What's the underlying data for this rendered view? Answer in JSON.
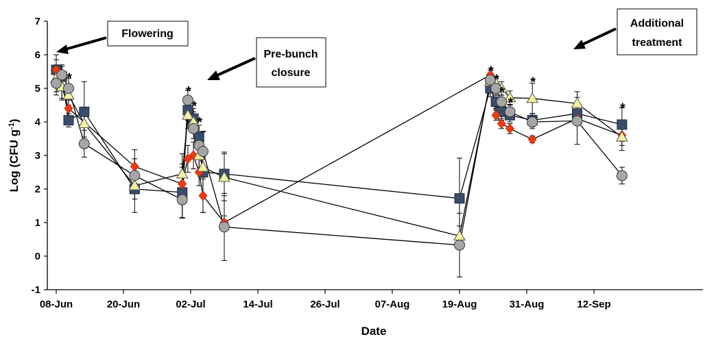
{
  "chart_data": {
    "type": "scatter",
    "title": "",
    "xlabel": "Date",
    "ylabel": "Log (CFU g",
    "ylabel_sup": "-1",
    "ylabel_close": ")",
    "ylim": [
      -1,
      7
    ],
    "yticks": [
      -1,
      0,
      1,
      2,
      3,
      4,
      5,
      6,
      7
    ],
    "xticks": [
      {
        "day": 0,
        "label": "08-Jun"
      },
      {
        "day": 12,
        "label": "20-Jun"
      },
      {
        "day": 24,
        "label": "02-Jul"
      },
      {
        "day": 36,
        "label": "14-Jul"
      },
      {
        "day": 48,
        "label": "26-Jul"
      },
      {
        "day": 60,
        "label": "07-Aug"
      },
      {
        "day": 72,
        "label": "19-Aug"
      },
      {
        "day": 84,
        "label": "31-Aug"
      },
      {
        "day": 96,
        "label": "12-Sep"
      }
    ],
    "xlim": [
      0,
      103
    ],
    "grid": false,
    "series": [
      {
        "marker": "square",
        "color": "#3a4d6b",
        "points": [
          {
            "x": 0,
            "y": 5.55,
            "err": 0.45
          },
          {
            "x": 1,
            "y": 5.35,
            "err": 0.3
          },
          {
            "x": 2.2,
            "y": 4.05,
            "err": 0.2
          },
          {
            "x": 5,
            "y": 4.3,
            "err": 0.9
          },
          {
            "x": 14,
            "y": 2.0,
            "err": 0.7
          },
          {
            "x": 22.5,
            "y": 1.9,
            "err": 0.75
          },
          {
            "x": 23.5,
            "y": 4.35,
            "err": 0.3
          },
          {
            "x": 24.5,
            "y": 4.1,
            "err": 0.3
          },
          {
            "x": 25.5,
            "y": 3.55,
            "err": 0.35
          },
          {
            "x": 26.2,
            "y": 2.5,
            "err": 1.2
          },
          {
            "x": 30,
            "y": 2.45,
            "err": 0.65
          },
          {
            "x": 72,
            "y": 1.72,
            "err": 1.2
          },
          {
            "x": 77.5,
            "y": 5.0,
            "err": 0.25
          },
          {
            "x": 78.5,
            "y": 4.6,
            "err": 0.2
          },
          {
            "x": 79.5,
            "y": 4.3,
            "err": 0.25
          },
          {
            "x": 81,
            "y": 4.2,
            "err": 0.2
          },
          {
            "x": 85,
            "y": 4.05,
            "err": 0.2
          },
          {
            "x": 93,
            "y": 4.25,
            "err": 0.3
          },
          {
            "x": 101,
            "y": 3.92,
            "err": 0.5
          }
        ]
      },
      {
        "marker": "diamond",
        "color": "#f03a12",
        "points": [
          {
            "x": 0,
            "y": 5.55,
            "err": 0.3
          },
          {
            "x": 1,
            "y": 5.05,
            "err": 0.35
          },
          {
            "x": 2.2,
            "y": 4.4,
            "err": 0.25
          },
          {
            "x": 14,
            "y": 2.67,
            "err": 0.5
          },
          {
            "x": 22.5,
            "y": 2.15,
            "err": 0.6
          },
          {
            "x": 23.5,
            "y": 2.9,
            "err": 0.4
          },
          {
            "x": 24.5,
            "y": 3.0,
            "err": 0.4
          },
          {
            "x": 25.5,
            "y": 2.5,
            "err": 0.4
          },
          {
            "x": 26.2,
            "y": 1.8,
            "err": 0.5
          },
          {
            "x": 30,
            "y": 1.0,
            "err": 0.2
          },
          {
            "x": 77.5,
            "y": 5.4,
            "err": 0.15
          },
          {
            "x": 78.5,
            "y": 4.2,
            "err": 0.15
          },
          {
            "x": 79.5,
            "y": 3.95,
            "err": 0.15
          },
          {
            "x": 81,
            "y": 3.8,
            "err": 0.15
          },
          {
            "x": 85,
            "y": 3.48,
            "err": 0.1
          },
          {
            "x": 93,
            "y": 4.1,
            "err": 0.2
          },
          {
            "x": 101,
            "y": 3.6,
            "err": 0.3
          }
        ]
      },
      {
        "marker": "triangle",
        "color": "#f6f1a0",
        "points": [
          {
            "x": 0,
            "y": 5.3,
            "err": 0.4
          },
          {
            "x": 1,
            "y": 5.05,
            "err": 0.4
          },
          {
            "x": 2.2,
            "y": 4.8,
            "err": 0.3
          },
          {
            "x": 5,
            "y": 3.95,
            "err": 0.4
          },
          {
            "x": 14,
            "y": 2.1,
            "err": 0.4
          },
          {
            "x": 22.5,
            "y": 2.45,
            "err": 0.6
          },
          {
            "x": 23.5,
            "y": 4.2,
            "err": 0.4
          },
          {
            "x": 24.5,
            "y": 4.0,
            "err": 0.3
          },
          {
            "x": 25.5,
            "y": 3.0,
            "err": 0.5
          },
          {
            "x": 26.2,
            "y": 2.65,
            "err": 0.3
          },
          {
            "x": 30,
            "y": 2.35,
            "err": 0.7
          },
          {
            "x": 72,
            "y": 0.6,
            "err": 0.3
          },
          {
            "x": 77.5,
            "y": 5.2,
            "err": 0.2
          },
          {
            "x": 78.5,
            "y": 5.15,
            "err": 0.2
          },
          {
            "x": 79.5,
            "y": 5.0,
            "err": 0.2
          },
          {
            "x": 81,
            "y": 4.72,
            "err": 0.2
          },
          {
            "x": 85,
            "y": 4.7,
            "err": 0.45
          },
          {
            "x": 93,
            "y": 4.55,
            "err": 0.35
          },
          {
            "x": 101,
            "y": 3.55,
            "err": 0.4
          }
        ]
      },
      {
        "marker": "circle",
        "color": "#a6a6a6",
        "points": [
          {
            "x": 0,
            "y": 5.15,
            "err": 0.35
          },
          {
            "x": 1,
            "y": 5.4,
            "err": 0.3
          },
          {
            "x": 2.2,
            "y": 5.0,
            "err": 0.3
          },
          {
            "x": 5,
            "y": 3.35,
            "err": 0.4
          },
          {
            "x": 14,
            "y": 2.4,
            "err": 0.5
          },
          {
            "x": 22.5,
            "y": 1.68,
            "err": 0.55
          },
          {
            "x": 23.5,
            "y": 4.65,
            "err": 0.3
          },
          {
            "x": 24.5,
            "y": 3.8,
            "err": 0.3
          },
          {
            "x": 25.5,
            "y": 3.3,
            "err": 0.4
          },
          {
            "x": 26.2,
            "y": 3.12,
            "err": 0.6
          },
          {
            "x": 30,
            "y": 0.87,
            "err": 1.0
          },
          {
            "x": 72,
            "y": 0.33,
            "err": 0.95
          },
          {
            "x": 77.5,
            "y": 5.25,
            "err": 0.2
          },
          {
            "x": 78.5,
            "y": 5.0,
            "err": 0.2
          },
          {
            "x": 79.5,
            "y": 4.6,
            "err": 0.2
          },
          {
            "x": 81,
            "y": 4.3,
            "err": 0.2
          },
          {
            "x": 85,
            "y": 4.0,
            "err": 0.2
          },
          {
            "x": 93,
            "y": 4.03,
            "err": 0.7
          },
          {
            "x": 101,
            "y": 2.4,
            "err": 0.25
          }
        ]
      }
    ],
    "asterisks": [
      {
        "x": 2.2,
        "y": 5.42
      },
      {
        "x": 23.5,
        "y": 5.02
      },
      {
        "x": 24.5,
        "y": 4.58
      },
      {
        "x": 25.5,
        "y": 4.1
      },
      {
        "x": 77.5,
        "y": 5.62
      },
      {
        "x": 78.5,
        "y": 5.38
      },
      {
        "x": 79.5,
        "y": 5.0
      },
      {
        "x": 81,
        "y": 4.68
      },
      {
        "x": 85,
        "y": 5.3
      },
      {
        "x": 101,
        "y": 4.52
      }
    ],
    "annotations": [
      {
        "lines": [
          "Flowering"
        ],
        "key": "flowering"
      },
      {
        "lines": [
          "Pre-bunch",
          "closure"
        ],
        "key": "prebunch"
      },
      {
        "lines": [
          "Additional",
          "treatment"
        ],
        "key": "additional"
      }
    ]
  }
}
